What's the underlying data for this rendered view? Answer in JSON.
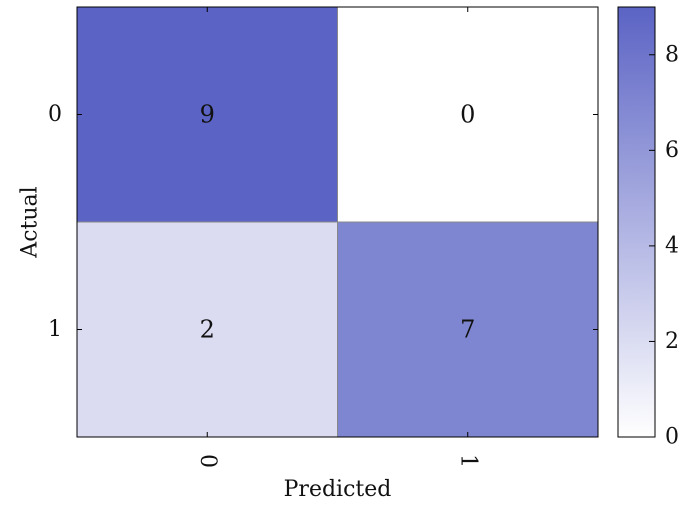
{
  "chart_data": {
    "type": "heatmap",
    "title": "",
    "xlabel": "Predicted",
    "ylabel": "Actual",
    "x_categories": [
      "0",
      "1"
    ],
    "y_categories": [
      "0",
      "1"
    ],
    "values": [
      [
        9,
        0
      ],
      [
        2,
        7
      ]
    ],
    "colorbar": {
      "min": 0,
      "max": 9,
      "ticks": [
        0,
        2,
        4,
        6,
        8
      ],
      "tick_labels": [
        "0",
        "2",
        "4",
        "6",
        "8"
      ],
      "low_color": "#ffffff",
      "high_color": "#5b63c4"
    },
    "x_tick_rotation_deg": 90,
    "grid": false,
    "legend": "colorbar-right"
  }
}
